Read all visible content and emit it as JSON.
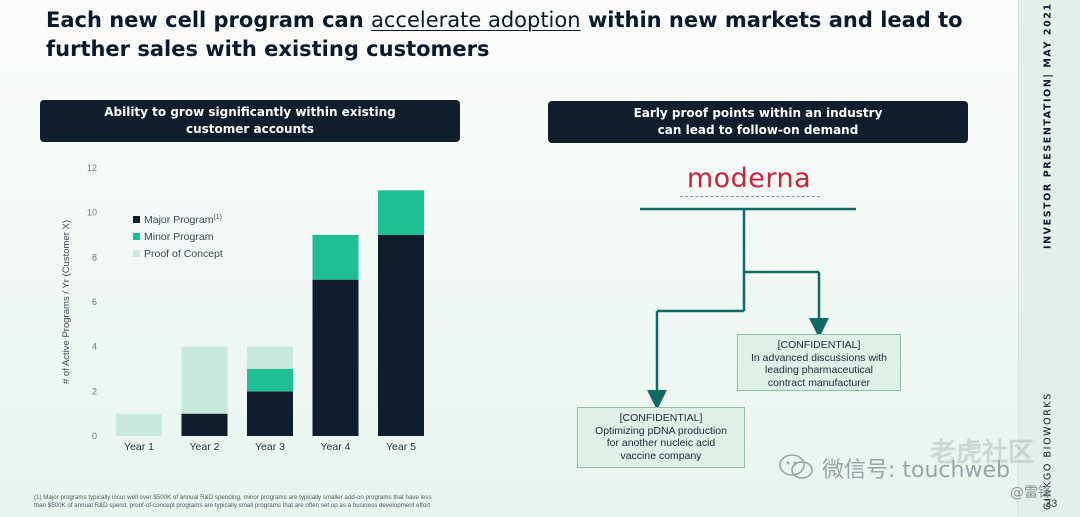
{
  "headline": {
    "part1": "Each new cell program can ",
    "underlined": "accelerate adoption",
    "part2": " within new markets and lead to further sales with existing customers"
  },
  "sidebar": {
    "company": "GINKGO BIOWORKS",
    "presentation": "INVESTOR PRESENTATION| MAY 2021"
  },
  "left_panel": {
    "header_line1": "Ability to grow significantly within existing",
    "header_line2": "customer accounts"
  },
  "right_panel": {
    "header_line1": "Early proof points within an industry",
    "header_line2": "can lead to follow-on demand",
    "logo_text": "moderna",
    "box_right": {
      "label": "[CONFIDENTIAL]",
      "lines": [
        "In advanced discussions with",
        "leading pharmaceutical",
        "contract manufacturer"
      ]
    },
    "box_left": {
      "label": "[CONFIDENTIAL]",
      "lines": [
        "Optimizing pDNA production",
        "for another nucleic acid",
        "vaccine company"
      ]
    }
  },
  "chart_data": {
    "type": "bar",
    "stacked": true,
    "categories": [
      "Year 1",
      "Year 2",
      "Year 3",
      "Year 4",
      "Year 5"
    ],
    "series": [
      {
        "name": "Major Program",
        "superscript": "(1)",
        "color": "#0f1d2d",
        "values": [
          0,
          1,
          2,
          7,
          9
        ]
      },
      {
        "name": "Minor Program",
        "color": "#1fbf95",
        "values": [
          0,
          0,
          1,
          2,
          2
        ]
      },
      {
        "name": "Proof of Concept",
        "color": "#c6e9dc",
        "values": [
          1,
          3,
          1,
          0,
          0
        ]
      }
    ],
    "ylabel": "# of Active Programs / Yr (Customer X)",
    "ylim": [
      0,
      12
    ],
    "yticks": [
      "0",
      "2",
      "4",
      "6",
      "8",
      "10",
      "12"
    ],
    "legend_position": "top-left",
    "grid": false
  },
  "footnote": {
    "line1": "(1) Major programs typically incur well over $500K of annual R&D spending, minor programs are typically smaller add-on programs that have less",
    "line2": "than $500K of annual R&D spend, proof-of-concept programs are typically small programs that are often set up as a business development effort"
  },
  "watermark": {
    "text": "微信号: touchweb",
    "brand": "老虎社区",
    "corner": "@雷锋"
  },
  "page_number": "33",
  "colors": {
    "navy": "#0f1d2d",
    "teal": "#1fbf95",
    "mint": "#c6e9dc",
    "moderna_red": "#c9233f",
    "arrow_teal": "#0e6b63"
  }
}
